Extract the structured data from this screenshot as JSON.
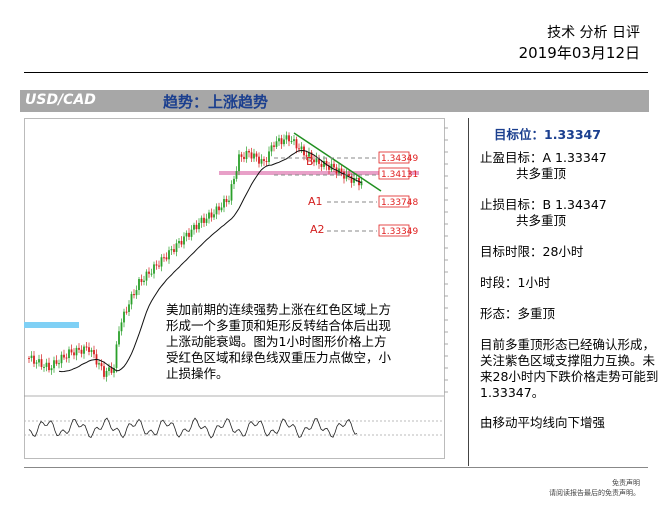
{
  "header": {
    "line1": "技术 分析 日评",
    "date": "2019年03月12日"
  },
  "band": {
    "pair": "USD/CAD",
    "trend": "趋势：上涨趋势"
  },
  "chart": {
    "levels": [
      {
        "id": "l1",
        "text": "1.34349",
        "color": "#e02020"
      },
      {
        "id": "l2",
        "text": "1.34131",
        "color": "#e02020"
      },
      {
        "id": "l3",
        "text": "1.33748",
        "color": "#e02020"
      },
      {
        "id": "l4",
        "text": "1.33349",
        "color": "#e02020"
      }
    ],
    "markers": {
      "b": "B",
      "a1": "A1",
      "a2": "A2"
    },
    "colors": {
      "up": "#2aa02a",
      "down": "#d42020",
      "zone_red": "#e8a0c8",
      "zone_blue": "#7fd0f5",
      "trend": "#209020"
    }
  },
  "comment": "美加前期的连续强势上涨在红色区域上方形成一个多重顶和矩形反转结合体后出现上涨动能衰竭。图为1小时图形价格上方受红色区域和绿色线双重压力点做空，小止损操作。",
  "side": {
    "target": "目标位：1.33347",
    "tp_label": "止盈目标：",
    "tp_value": "A 1.33347",
    "tp_note": "共多重顶",
    "sl_label": "止损目标：",
    "sl_value": "B  1.34347",
    "sl_note": "共多重顶",
    "time_limit": "目标时限：28小时",
    "period": "时段：1小时",
    "pattern": "形态：多重顶",
    "analysis": "目前多重顶形态已经确认形成，关注紫色区域支撑阻力互换。未来28小时内下跌价格走势可能到1.33347。",
    "ma": "由移动平均线向下增强"
  },
  "disclaimer": {
    "line1": "免责声明",
    "line2": "请阅读报告最后的免责声明。"
  }
}
